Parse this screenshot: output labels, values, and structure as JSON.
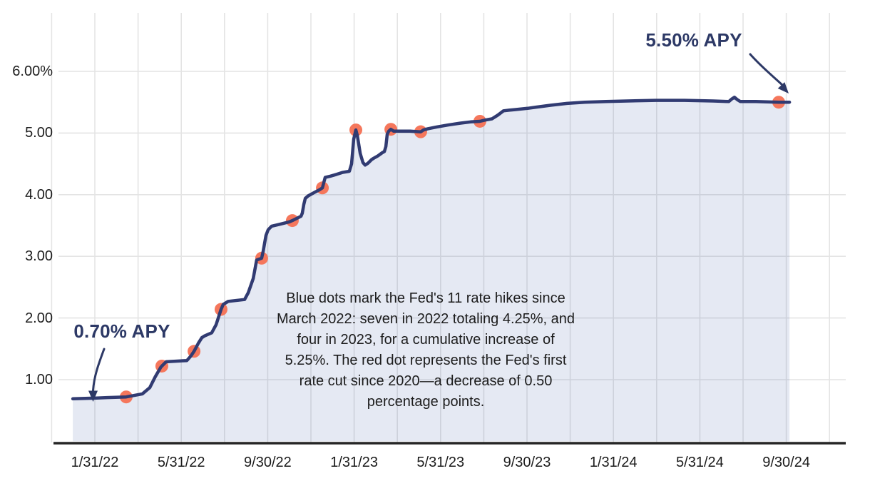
{
  "chart_data": {
    "type": "area",
    "x_unit": "months_since_1_31_22",
    "xlim": [
      -2,
      34.8
    ],
    "ylim": [
      0,
      6.95
    ],
    "grid": true,
    "x_ticks": [
      {
        "label": "1/31/22",
        "m": 0
      },
      {
        "label": "5/31/22",
        "m": 4
      },
      {
        "label": "9/30/22",
        "m": 8
      },
      {
        "label": "1/31/23",
        "m": 12
      },
      {
        "label": "5/31/23",
        "m": 16
      },
      {
        "label": "9/30/23",
        "m": 20
      },
      {
        "label": "1/31/24",
        "m": 24
      },
      {
        "label": "5/31/24",
        "m": 28
      },
      {
        "label": "9/30/24",
        "m": 32
      }
    ],
    "y_ticks": [
      {
        "label": "6.00%",
        "v": 6
      },
      {
        "label": "5.00",
        "v": 5
      },
      {
        "label": "4.00",
        "v": 4
      },
      {
        "label": "3.00",
        "v": 3
      },
      {
        "label": "2.00",
        "v": 2
      },
      {
        "label": "1.00",
        "v": 1
      }
    ],
    "series": [
      {
        "name": "APY",
        "points": [
          [
            -1.02,
            0.69
          ],
          [
            0.0,
            0.7
          ],
          [
            0.56,
            0.71
          ],
          [
            1.45,
            0.72
          ],
          [
            2.2,
            0.77
          ],
          [
            2.54,
            0.87
          ],
          [
            2.8,
            1.05
          ],
          [
            3.05,
            1.2
          ],
          [
            3.1,
            1.22
          ],
          [
            3.3,
            1.29
          ],
          [
            4.26,
            1.31
          ],
          [
            4.46,
            1.39
          ],
          [
            4.59,
            1.46
          ],
          [
            4.79,
            1.59
          ],
          [
            4.95,
            1.68
          ],
          [
            5.08,
            1.71
          ],
          [
            5.41,
            1.76
          ],
          [
            5.61,
            1.89
          ],
          [
            5.84,
            2.14
          ],
          [
            5.94,
            2.22
          ],
          [
            6.17,
            2.27
          ],
          [
            6.93,
            2.3
          ],
          [
            7.1,
            2.41
          ],
          [
            7.33,
            2.64
          ],
          [
            7.49,
            2.94
          ],
          [
            7.72,
            2.97
          ],
          [
            7.79,
            3.08
          ],
          [
            7.92,
            3.34
          ],
          [
            8.02,
            3.43
          ],
          [
            8.18,
            3.49
          ],
          [
            8.55,
            3.52
          ],
          [
            9.01,
            3.56
          ],
          [
            9.14,
            3.58
          ],
          [
            9.37,
            3.62
          ],
          [
            9.54,
            3.65
          ],
          [
            9.6,
            3.7
          ],
          [
            9.67,
            3.84
          ],
          [
            9.74,
            3.94
          ],
          [
            9.87,
            3.98
          ],
          [
            10.13,
            4.03
          ],
          [
            10.4,
            4.08
          ],
          [
            10.53,
            4.11
          ],
          [
            10.59,
            4.19
          ],
          [
            10.66,
            4.28
          ],
          [
            10.89,
            4.3
          ],
          [
            11.19,
            4.33
          ],
          [
            11.45,
            4.36
          ],
          [
            11.78,
            4.38
          ],
          [
            11.88,
            4.5
          ],
          [
            11.98,
            4.9
          ],
          [
            12.08,
            5.05
          ],
          [
            12.15,
            4.96
          ],
          [
            12.28,
            4.67
          ],
          [
            12.41,
            4.52
          ],
          [
            12.51,
            4.48
          ],
          [
            12.64,
            4.51
          ],
          [
            12.81,
            4.57
          ],
          [
            12.9,
            4.59
          ],
          [
            13.1,
            4.63
          ],
          [
            13.3,
            4.68
          ],
          [
            13.4,
            4.7
          ],
          [
            13.47,
            4.78
          ],
          [
            13.53,
            4.98
          ],
          [
            13.6,
            5.03
          ],
          [
            13.7,
            5.06
          ],
          [
            13.83,
            5.03
          ],
          [
            14.59,
            5.03
          ],
          [
            15.08,
            5.02
          ],
          [
            15.21,
            5.05
          ],
          [
            15.41,
            5.07
          ],
          [
            15.84,
            5.1
          ],
          [
            16.34,
            5.13
          ],
          [
            16.9,
            5.16
          ],
          [
            17.39,
            5.18
          ],
          [
            17.82,
            5.19
          ],
          [
            18.05,
            5.21
          ],
          [
            18.38,
            5.23
          ],
          [
            18.65,
            5.29
          ],
          [
            18.91,
            5.36
          ],
          [
            19.17,
            5.37
          ],
          [
            19.44,
            5.38
          ],
          [
            20.03,
            5.4
          ],
          [
            20.43,
            5.42
          ],
          [
            21.09,
            5.45
          ],
          [
            21.85,
            5.48
          ],
          [
            22.67,
            5.5
          ],
          [
            23.66,
            5.51
          ],
          [
            24.65,
            5.52
          ],
          [
            25.97,
            5.53
          ],
          [
            27.29,
            5.53
          ],
          [
            28.61,
            5.52
          ],
          [
            29.34,
            5.51
          ],
          [
            29.47,
            5.55
          ],
          [
            29.6,
            5.58
          ],
          [
            29.74,
            5.54
          ],
          [
            29.87,
            5.51
          ],
          [
            30.59,
            5.51
          ],
          [
            31.65,
            5.5
          ],
          [
            32.15,
            5.5
          ]
        ]
      }
    ],
    "rate_hike_dots": [
      [
        1.45,
        0.72
      ],
      [
        3.1,
        1.22
      ],
      [
        4.59,
        1.46
      ],
      [
        5.84,
        2.14
      ],
      [
        7.72,
        2.97
      ],
      [
        9.14,
        3.58
      ],
      [
        10.53,
        4.11
      ],
      [
        12.08,
        5.05
      ],
      [
        13.7,
        5.06
      ],
      [
        15.08,
        5.02
      ],
      [
        17.82,
        5.19
      ]
    ],
    "rate_cut_dot": [
      31.65,
      5.5
    ]
  },
  "annotations": {
    "start_label": "0.70% APY",
    "end_label": "5.50% APY",
    "note_lines": [
      "Blue dots mark the Fed's 11 rate hikes since",
      "March 2022: seven in 2022 totaling 4.25%, and",
      "four in 2023, for a cumulative increase of",
      "5.25%. The red dot represents the Fed's first",
      "rate cut since 2020—a decrease of 0.50",
      "percentage points."
    ]
  },
  "colors": {
    "line": "#313b72",
    "dot": "#f5775c",
    "area_fill": "#4960ac",
    "area_fill_opacity": "0.14",
    "gridline": "#e4e4e4",
    "axis": "#262626",
    "text": "#1c1c1c",
    "callout_navy": "#2d3966"
  }
}
